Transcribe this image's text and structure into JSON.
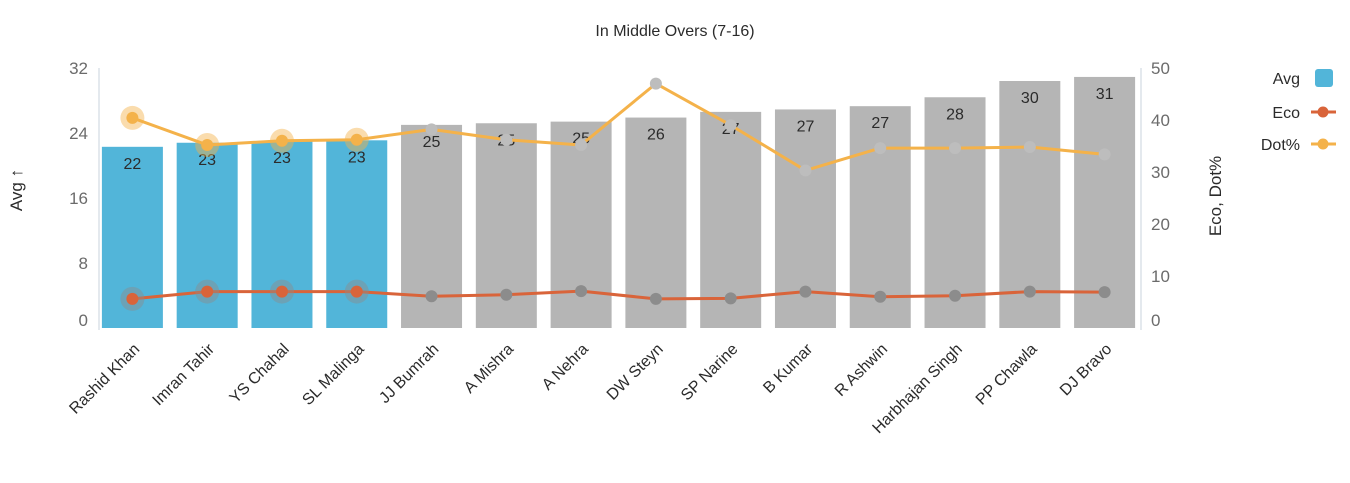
{
  "chart_data": {
    "type": "bar",
    "title": "In Middle Overs (7-16)",
    "categories": [
      "Rashid Khan",
      "Imran Tahir",
      "YS Chahal",
      "SL Malinga",
      "JJ Bumrah",
      "A Mishra",
      "A Nehra",
      "DW Steyn",
      "SP Narine",
      "B Kumar",
      "R Ashwin",
      "Harbhajan Singh",
      "PP Chawla",
      "DJ Bravo"
    ],
    "ylabel": "Avg ↑",
    "y2label": "Eco, Dot%",
    "ylim": [
      0,
      32
    ],
    "y2lim": [
      0,
      50
    ],
    "y_ticks": [
      "0",
      "8",
      "16",
      "24",
      "32"
    ],
    "y2_ticks": [
      "0",
      "10",
      "20",
      "30",
      "40",
      "50"
    ],
    "legend_position": "top-right",
    "highlight_count": 4,
    "colors": {
      "highlight_bar": "#52b5d9",
      "bar": "#b5b5b5",
      "eco": "#d9643a",
      "dot": "#f4b24a",
      "muted_marker": "#bdbdbd",
      "muted_marker_dark": "#8c8c8c"
    },
    "series": [
      {
        "name": "Avg",
        "type": "bar",
        "axis": "left",
        "values": [
          22.3,
          22.8,
          23.0,
          23.1,
          25.0,
          25.2,
          25.4,
          25.9,
          26.6,
          26.9,
          27.3,
          28.4,
          30.4,
          30.9
        ],
        "labels": [
          "22",
          "23",
          "23",
          "23",
          "25",
          "25",
          "25",
          "26",
          "27",
          "27",
          "27",
          "28",
          "30",
          "31"
        ]
      },
      {
        "name": "Eco",
        "type": "line",
        "axis": "right",
        "values": [
          5.6,
          7.0,
          7.0,
          7.0,
          6.1,
          6.4,
          7.1,
          5.6,
          5.7,
          7.0,
          6.0,
          6.2,
          7.0,
          6.9
        ]
      },
      {
        "name": "Dot%",
        "type": "line",
        "axis": "right",
        "values": [
          40.4,
          35.2,
          36.0,
          36.2,
          38.2,
          36.2,
          35.2,
          47.0,
          39.0,
          30.3,
          34.6,
          34.6,
          34.8,
          33.4
        ]
      }
    ]
  }
}
